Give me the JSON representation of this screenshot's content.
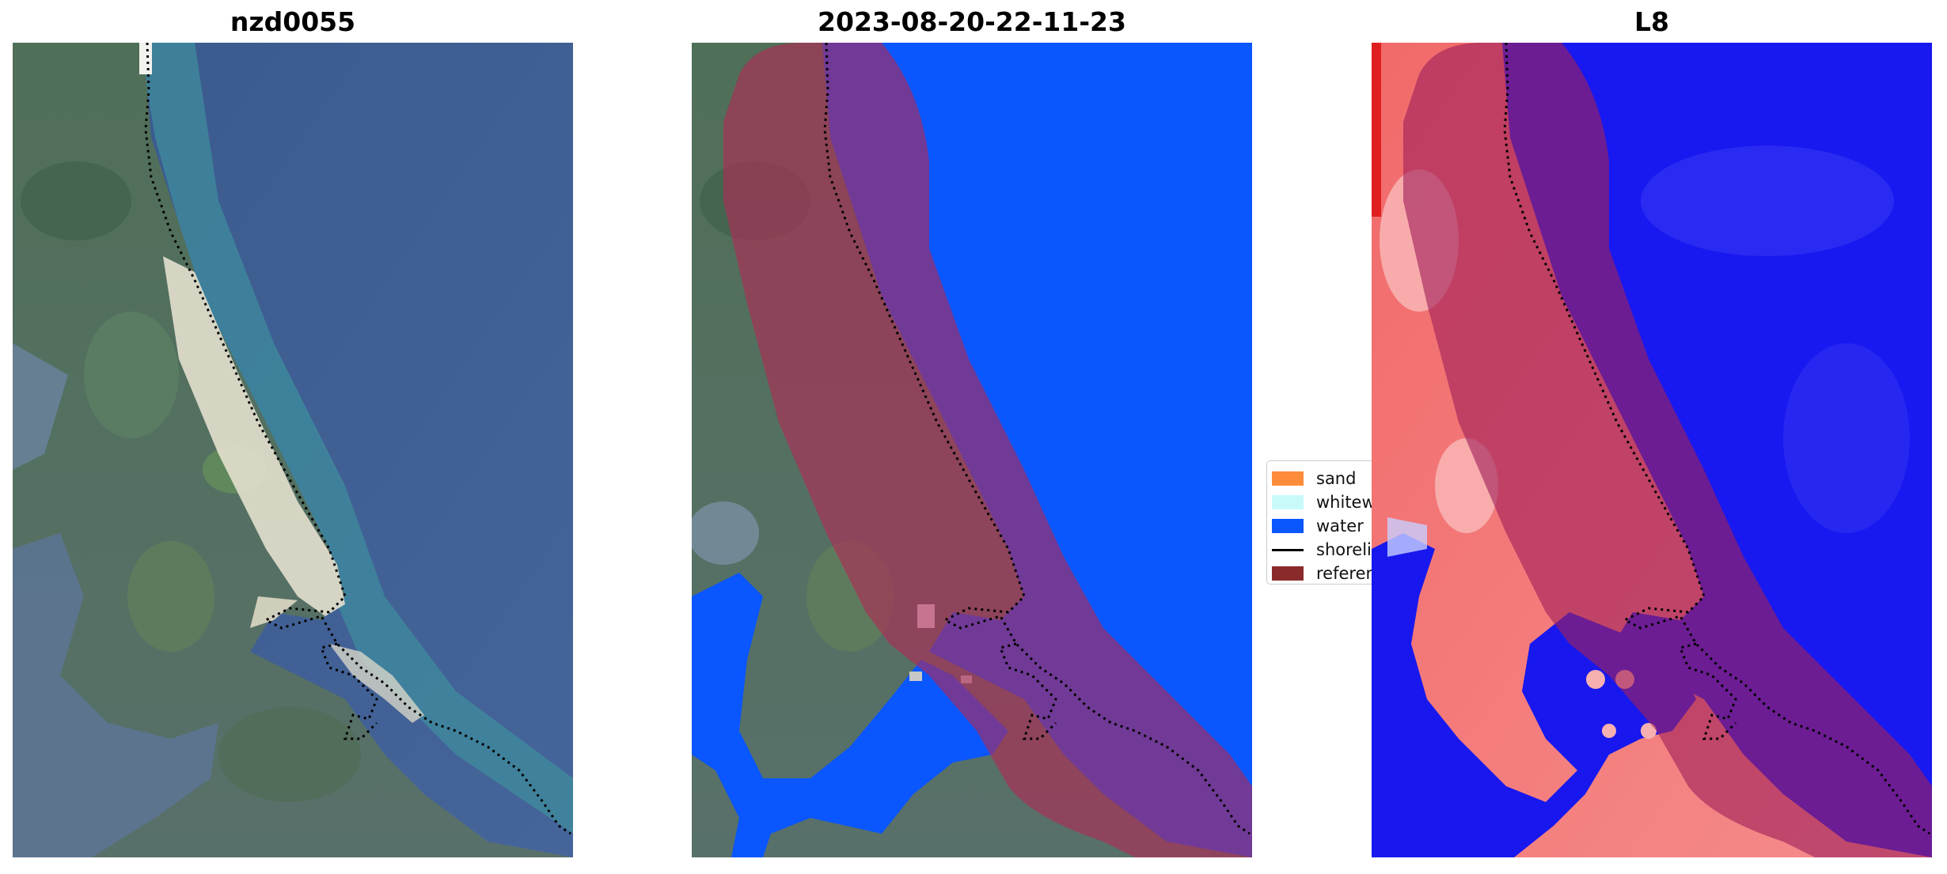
{
  "panels": [
    {
      "title": "nzd0055"
    },
    {
      "title": "2023-08-20-22-11-23"
    },
    {
      "title": "L8"
    }
  ],
  "legend": {
    "items": [
      {
        "label": "sand",
        "color": "#ff8c3a",
        "kind": "patch"
      },
      {
        "label": "whitewater",
        "color": "#c8fafa",
        "kind": "patch"
      },
      {
        "label": "water",
        "color": "#0a56ff",
        "kind": "patch"
      },
      {
        "label": "shoreline",
        "color": "#000000",
        "kind": "line"
      },
      {
        "label": "reference shoreline buffer",
        "color": "#8b2a2a",
        "kind": "patch"
      }
    ]
  },
  "colors": {
    "land_green": "#4e7552",
    "sea_blue": "#3e5f93",
    "shallow_teal": "#3f8fa0",
    "sand_white": "#e6e2d2",
    "water_class": "#0a56ff",
    "buffer_overlay": "#b0306a",
    "index_red": "#f06060",
    "index_blue": "#1414f0"
  }
}
